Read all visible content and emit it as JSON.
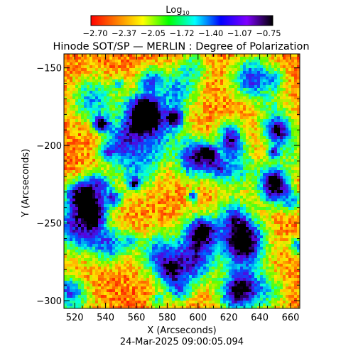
{
  "chart_data": {
    "type": "heatmap",
    "title": "Hinode SOT/SP — MERLIN : Degree of Polarization",
    "xlabel": "X (Arcseconds)",
    "ylabel": "Y (Arcseconds)",
    "xlim": [
      513,
      666
    ],
    "ylim": [
      -305,
      -141
    ],
    "x_ticks": [
      520,
      540,
      560,
      580,
      600,
      620,
      640,
      660
    ],
    "y_ticks": [
      -150,
      -200,
      -250,
      -300
    ],
    "timestamp": "24-Mar-2025 09:00:05.094",
    "colorbar": {
      "label_base": "Log",
      "label_sub": "10",
      "scale": "log10",
      "range": [
        -2.7,
        -0.75
      ],
      "tick_labels": [
        "−2.70",
        "−2.37",
        "−2.05",
        "−1.72",
        "−1.40",
        "−1.07",
        "−0.75"
      ],
      "colormap": [
        "#ff0000",
        "#ff7f00",
        "#ffff00",
        "#00ff00",
        "#00ffff",
        "#0000ff",
        "#7f00ff",
        "#000000"
      ]
    },
    "grid": false,
    "legend": "none"
  }
}
